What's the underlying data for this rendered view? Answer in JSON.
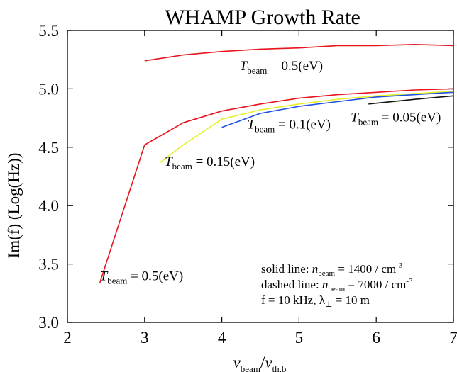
{
  "chart_data": {
    "type": "line",
    "title": "WHAMP Growth Rate",
    "ylabel": "Im(f) (Log(Hz))",
    "xlabel": {
      "main": "v",
      "main_sub": "beam",
      "slash": "/",
      "den": "v",
      "den_sub": "th,b"
    },
    "xlim": [
      2,
      7
    ],
    "ylim": [
      3.0,
      5.5
    ],
    "xticks": [
      "2",
      "3",
      "4",
      "5",
      "6",
      "7"
    ],
    "yticks": [
      "3.0",
      "3.5",
      "4.0",
      "4.5",
      "5.0",
      "5.5"
    ],
    "series": [
      {
        "color": "#e8141e",
        "x": [
          3.0,
          3.5,
          4.0,
          4.5,
          5.0,
          5.5,
          6.0,
          6.5,
          7.0
        ],
        "y": [
          5.24,
          5.29,
          5.32,
          5.34,
          5.35,
          5.37,
          5.37,
          5.38,
          5.37
        ]
      },
      {
        "color": "#e8141e",
        "x": [
          2.42,
          3.0,
          3.5,
          4.0,
          4.5,
          5.0,
          5.5,
          6.0,
          6.5,
          7.0
        ],
        "y": [
          3.34,
          4.52,
          4.71,
          4.81,
          4.87,
          4.92,
          4.95,
          4.97,
          4.99,
          5.0
        ]
      },
      {
        "color": "#e6f028",
        "x": [
          3.2,
          3.5,
          4.0,
          4.5,
          5.0,
          5.5,
          6.0,
          6.5,
          7.0
        ],
        "y": [
          4.37,
          4.52,
          4.74,
          4.82,
          4.87,
          4.91,
          4.94,
          4.96,
          4.98
        ]
      },
      {
        "color": "#1e50e6",
        "x": [
          4.0,
          4.5,
          5.0,
          5.5,
          6.0,
          6.5,
          7.0
        ],
        "y": [
          4.67,
          4.79,
          4.85,
          4.89,
          4.93,
          4.95,
          4.97
        ]
      },
      {
        "color": "#111111",
        "x": [
          5.9,
          6.5,
          7.0
        ],
        "y": [
          4.87,
          4.91,
          4.94
        ]
      }
    ],
    "annotations": [
      {
        "x": 4.23,
        "y": 5.16,
        "pre": "T",
        "sub": "beam",
        "post": " = 0.5(eV)"
      },
      {
        "x": 4.33,
        "y": 4.66,
        "pre": "T",
        "sub": "beam",
        "post": " = 0.1(eV)"
      },
      {
        "x": 5.67,
        "y": 4.72,
        "pre": "T",
        "sub": "beam",
        "post": " = 0.05(eV)"
      },
      {
        "x": 3.26,
        "y": 4.34,
        "pre": "T",
        "sub": "beam",
        "post": " = 0.15(eV)"
      },
      {
        "x": 2.42,
        "y": 3.36,
        "pre": "T",
        "sub": "beam",
        "post": " = 0.5(eV)"
      }
    ],
    "legend": {
      "placement": "bottom-right",
      "lines": [
        {
          "pre": "solid line: ",
          "var": "n",
          "sub": "beam",
          "post": " = 1400 / cm",
          "sup": "-3"
        },
        {
          "pre": "dashed line: ",
          "var": "n",
          "sub": "beam",
          "post": " = 7000 / cm",
          "sup": "-3"
        },
        {
          "pre": "f = 10 kHz, λ",
          "var": "",
          "sub": "⊥",
          "post": " = 10 m",
          "sup": ""
        }
      ]
    },
    "grid": false
  }
}
